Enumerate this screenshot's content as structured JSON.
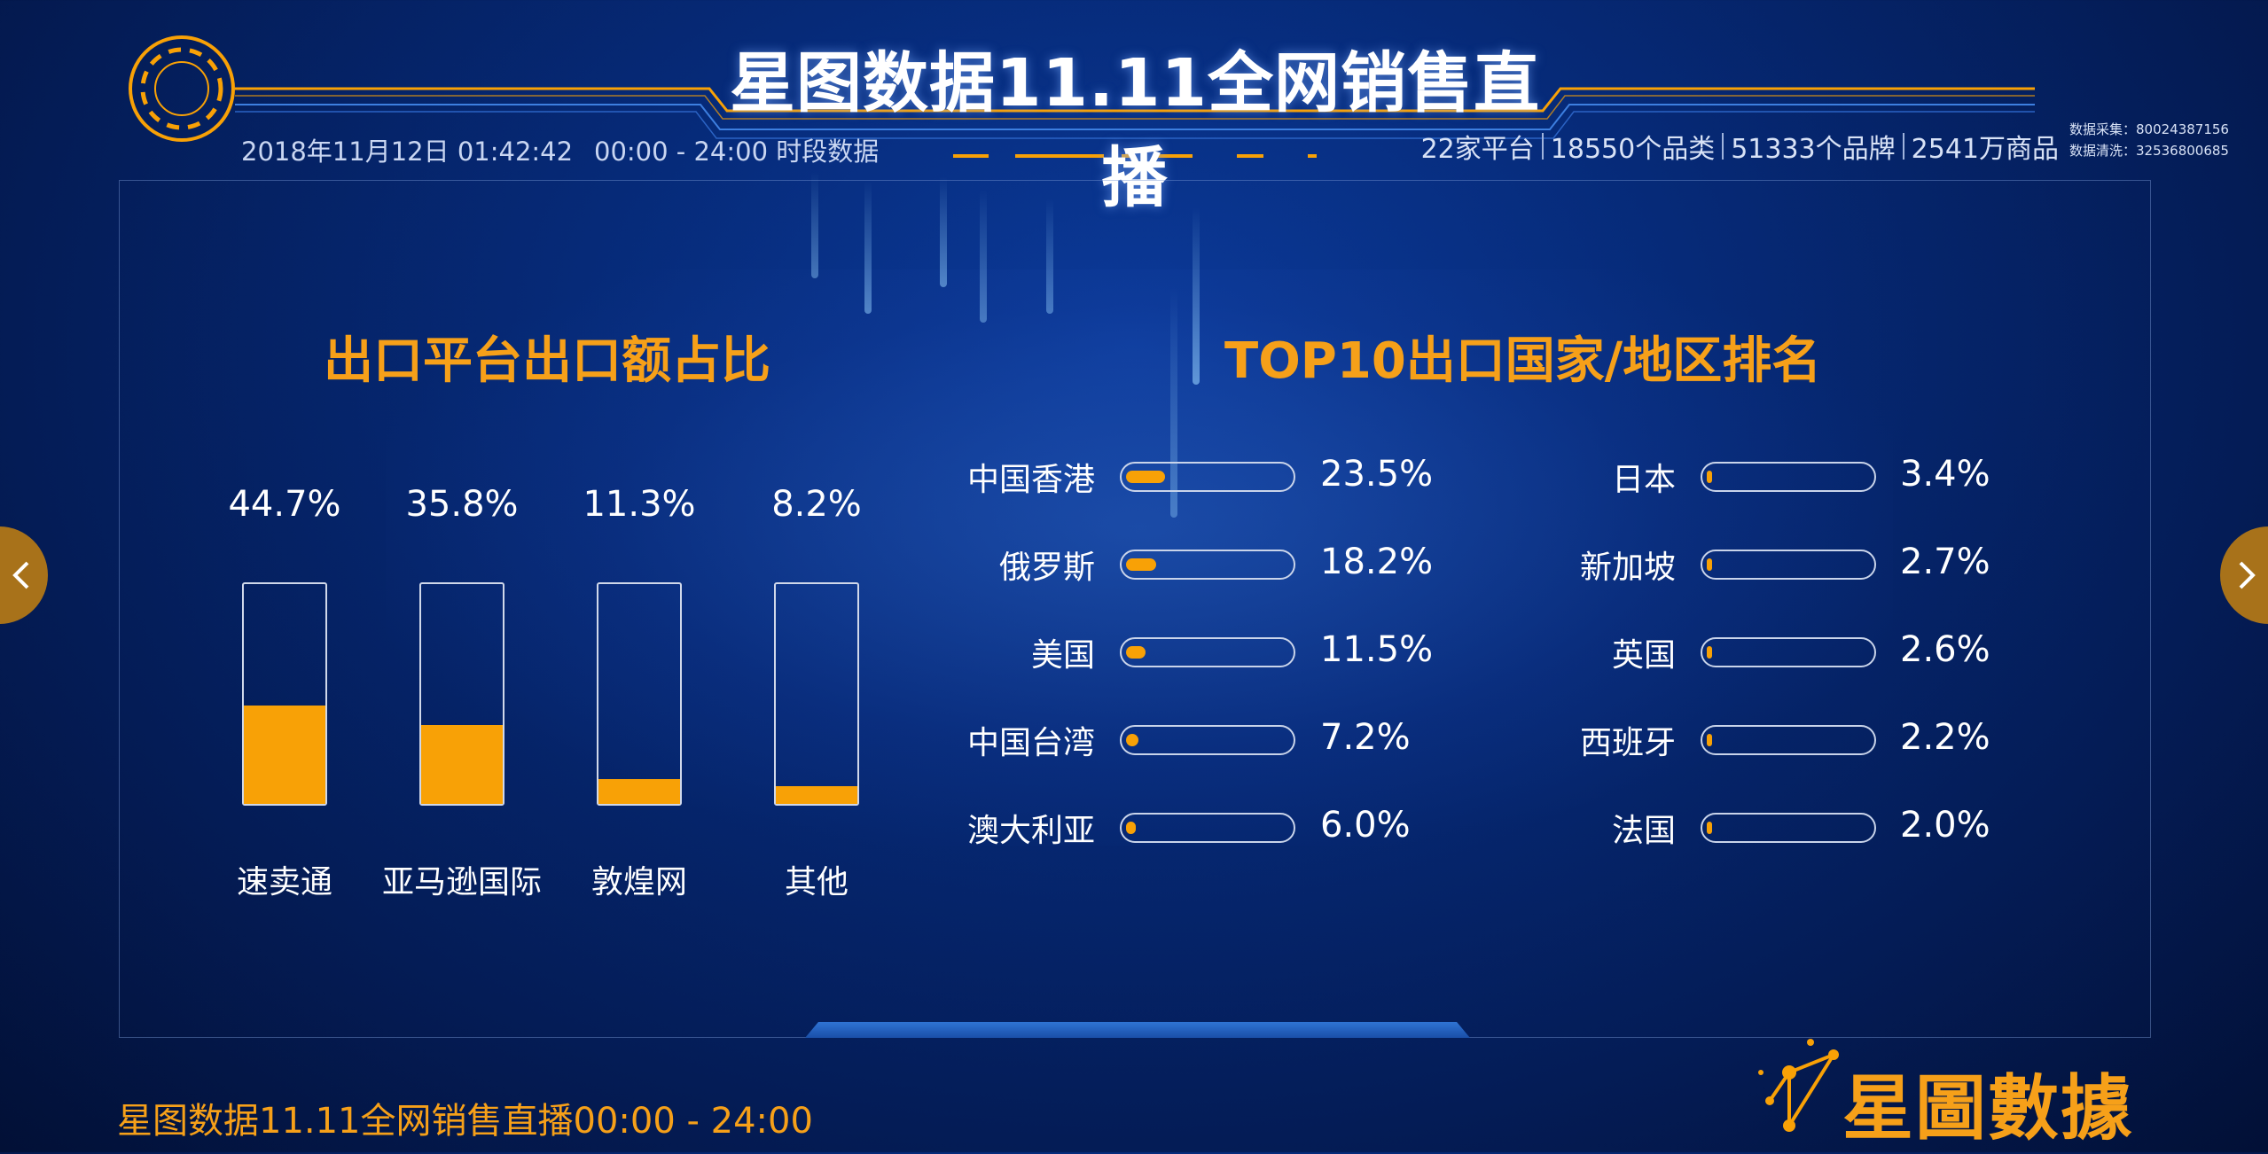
{
  "header": {
    "title": "星图数据11.11全网销售直播",
    "datetime": "2018年11月12日 01:42:42",
    "time_range": "00:00 - 24:00 时段数据",
    "stats": [
      "22家平台",
      "18550个品类",
      "51333个品牌",
      "2541万商品"
    ],
    "collect_label": "数据采集：80024387156",
    "clean_label": "数据清洗：32536800685"
  },
  "left_chart": {
    "title": "出口平台出口额占比",
    "chart_data": {
      "type": "bar",
      "categories": [
        "速卖通",
        "亚马逊国际",
        "敦煌网",
        "其他"
      ],
      "values": [
        44.7,
        35.8,
        11.3,
        8.2
      ],
      "value_labels": [
        "44.7%",
        "35.8%",
        "11.3%",
        "8.2%"
      ],
      "ylim": [
        0,
        100
      ]
    }
  },
  "right_chart": {
    "title": "TOP10出口国家/地区排名",
    "chart_data": {
      "type": "bar",
      "categories": [
        "中国香港",
        "俄罗斯",
        "美国",
        "中国台湾",
        "澳大利亚",
        "日本",
        "新加坡",
        "英国",
        "西班牙",
        "法国"
      ],
      "values": [
        23.5,
        18.2,
        11.5,
        7.2,
        6.0,
        3.4,
        2.7,
        2.6,
        2.2,
        2.0
      ],
      "value_labels": [
        "23.5%",
        "18.2%",
        "11.5%",
        "7.2%",
        "6.0%",
        "3.4%",
        "2.7%",
        "2.6%",
        "2.2%",
        "2.0%"
      ]
    }
  },
  "footer": {
    "text": "星图数据11.11全网销售直播00:00 - 24:00",
    "brand": "星圖數據"
  },
  "nav": {
    "prev_icon": "chevron-left-icon",
    "next_icon": "chevron-right-icon"
  },
  "colors": {
    "accent": "#f8a106",
    "background": "#062a78",
    "text": "#ffffff"
  }
}
